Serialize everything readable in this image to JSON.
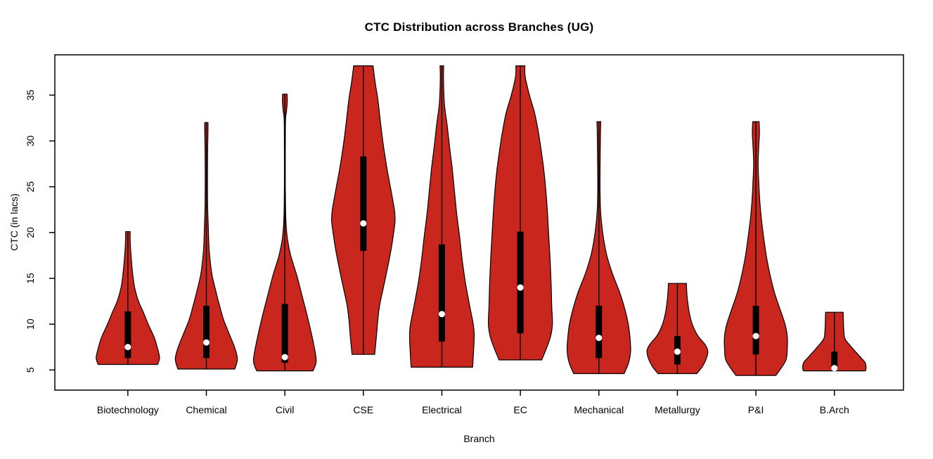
{
  "chart_data": {
    "type": "violin",
    "title": "CTC Distribution across Branches (UG)",
    "xlabel": "Branch",
    "ylabel": "CTC (in lacs)",
    "yticks": [
      5,
      10,
      15,
      20,
      25,
      30,
      35
    ],
    "ylim": [
      2.8,
      39.4
    ],
    "xlim": [
      0.07,
      10.88
    ],
    "grid": false,
    "legend": null,
    "units": "CTC in lacs",
    "colors": {
      "violin_fill": "#C9261E",
      "violin_outline": "#000000",
      "box": "#000000",
      "whisker": "#000000",
      "median_dot": "#FFFFFF",
      "axis": "#000000",
      "text": "#000000",
      "background": "#FFFFFF"
    },
    "density_note": "density = [CTC value in lacs, relative violin half-width 0..1]",
    "branches": [
      {
        "name": "Biotechnology",
        "stats": {
          "min": 5.6,
          "q1": 6.3,
          "median": 7.5,
          "q3": 11.4,
          "max": 20
        },
        "density": [
          [
            20.1,
            0.07
          ],
          [
            19.4,
            0.07
          ],
          [
            18.5,
            0.08
          ],
          [
            17,
            0.11
          ],
          [
            15.5,
            0.15
          ],
          [
            14,
            0.21
          ],
          [
            12.5,
            0.33
          ],
          [
            11.3,
            0.48
          ],
          [
            10,
            0.63
          ],
          [
            8.5,
            0.82
          ],
          [
            7.2,
            0.93
          ],
          [
            6.3,
            0.98
          ],
          [
            5.6,
            0.92
          ]
        ]
      },
      {
        "name": "Chemical",
        "stats": {
          "min": 5.1,
          "q1": 6.3,
          "median": 8,
          "q3": 12,
          "max": 32
        },
        "density": [
          [
            32,
            0.05
          ],
          [
            31,
            0.05
          ],
          [
            29,
            0.04
          ],
          [
            26,
            0.035
          ],
          [
            23,
            0.04
          ],
          [
            20.5,
            0.06
          ],
          [
            18,
            0.09
          ],
          [
            15.5,
            0.17
          ],
          [
            13.5,
            0.3
          ],
          [
            12,
            0.41
          ],
          [
            10.5,
            0.53
          ],
          [
            9,
            0.7
          ],
          [
            7.5,
            0.87
          ],
          [
            6.2,
            0.96
          ],
          [
            5.1,
            0.88
          ]
        ]
      },
      {
        "name": "Civil",
        "stats": {
          "min": 4.9,
          "q1": 5.8,
          "median": 6.4,
          "q3": 12.2,
          "max": 35
        },
        "density": [
          [
            35.1,
            0.07
          ],
          [
            34.3,
            0.075
          ],
          [
            33.2,
            0.05
          ],
          [
            32.3,
            0.02
          ],
          [
            29,
            0.015
          ],
          [
            25,
            0.015
          ],
          [
            21.5,
            0.03
          ],
          [
            19.3,
            0.08
          ],
          [
            17.5,
            0.18
          ],
          [
            15.3,
            0.37
          ],
          [
            13,
            0.54
          ],
          [
            10.5,
            0.72
          ],
          [
            8,
            0.88
          ],
          [
            6,
            0.97
          ],
          [
            4.9,
            0.87
          ]
        ]
      },
      {
        "name": "CSE",
        "stats": {
          "min": 6.7,
          "q1": 18,
          "median": 21,
          "q3": 28.3,
          "max": 38
        },
        "density": [
          [
            38.2,
            0.3
          ],
          [
            36.5,
            0.36
          ],
          [
            34.5,
            0.45
          ],
          [
            32,
            0.53
          ],
          [
            29.5,
            0.62
          ],
          [
            27,
            0.73
          ],
          [
            24.5,
            0.86
          ],
          [
            22.5,
            0.96
          ],
          [
            21.3,
            0.98
          ],
          [
            19.8,
            0.93
          ],
          [
            18,
            0.85
          ],
          [
            16,
            0.74
          ],
          [
            14,
            0.62
          ],
          [
            12,
            0.5
          ],
          [
            10.2,
            0.44
          ],
          [
            8.5,
            0.4
          ],
          [
            6.7,
            0.35
          ]
        ]
      },
      {
        "name": "Electrical",
        "stats": {
          "min": 5.3,
          "q1": 8.1,
          "median": 11.1,
          "q3": 18.7,
          "max": 38
        },
        "density": [
          [
            38.2,
            0.055
          ],
          [
            36.5,
            0.05
          ],
          [
            34,
            0.08
          ],
          [
            31.8,
            0.16
          ],
          [
            29.3,
            0.24
          ],
          [
            27,
            0.32
          ],
          [
            24.5,
            0.39
          ],
          [
            22,
            0.46
          ],
          [
            19.5,
            0.55
          ],
          [
            17,
            0.63
          ],
          [
            14.5,
            0.73
          ],
          [
            12,
            0.86
          ],
          [
            10,
            0.97
          ],
          [
            8.8,
            1.0
          ],
          [
            7,
            0.98
          ],
          [
            5.3,
            0.95
          ]
        ]
      },
      {
        "name": "EC",
        "stats": {
          "min": 6.1,
          "q1": 9,
          "median": 14,
          "q3": 20.1,
          "max": 38
        },
        "density": [
          [
            38.2,
            0.14
          ],
          [
            37,
            0.15
          ],
          [
            35,
            0.28
          ],
          [
            33.2,
            0.43
          ],
          [
            31.3,
            0.54
          ],
          [
            29.3,
            0.63
          ],
          [
            27,
            0.72
          ],
          [
            24.5,
            0.79
          ],
          [
            22,
            0.84
          ],
          [
            19.5,
            0.88
          ],
          [
            17,
            0.92
          ],
          [
            14.5,
            0.95
          ],
          [
            12,
            0.97
          ],
          [
            10,
            0.99
          ],
          [
            8.6,
            0.93
          ],
          [
            7.3,
            0.8
          ],
          [
            6.1,
            0.66
          ]
        ]
      },
      {
        "name": "Mechanical",
        "stats": {
          "min": 4.6,
          "q1": 6.3,
          "median": 8.5,
          "q3": 12,
          "max": 32
        },
        "density": [
          [
            32.1,
            0.06
          ],
          [
            31,
            0.05
          ],
          [
            28,
            0.04
          ],
          [
            25,
            0.035
          ],
          [
            22.5,
            0.05
          ],
          [
            20.5,
            0.1
          ],
          [
            18.8,
            0.17
          ],
          [
            17.3,
            0.26
          ],
          [
            15.5,
            0.42
          ],
          [
            13.5,
            0.64
          ],
          [
            11.8,
            0.79
          ],
          [
            10,
            0.91
          ],
          [
            8.2,
            0.97
          ],
          [
            7,
            0.98
          ],
          [
            5.8,
            0.92
          ],
          [
            4.6,
            0.78
          ]
        ]
      },
      {
        "name": "Metallurgy",
        "stats": {
          "min": 4.6,
          "q1": 5.6,
          "median": 7,
          "q3": 8.7,
          "max": 14.4
        },
        "density": [
          [
            14.45,
            0.28
          ],
          [
            13.5,
            0.29
          ],
          [
            12.4,
            0.32
          ],
          [
            11.2,
            0.37
          ],
          [
            10,
            0.46
          ],
          [
            8.8,
            0.62
          ],
          [
            7.8,
            0.85
          ],
          [
            7.1,
            0.94
          ],
          [
            6.3,
            0.9
          ],
          [
            5.4,
            0.78
          ],
          [
            4.6,
            0.6
          ]
        ]
      },
      {
        "name": "P&I",
        "stats": {
          "min": 4.4,
          "q1": 6.7,
          "median": 8.7,
          "q3": 12,
          "max": 32
        },
        "density": [
          [
            32.1,
            0.1
          ],
          [
            30.8,
            0.11
          ],
          [
            29.5,
            0.09
          ],
          [
            27.5,
            0.07
          ],
          [
            25.5,
            0.09
          ],
          [
            23.5,
            0.12
          ],
          [
            21.5,
            0.17
          ],
          [
            19.5,
            0.24
          ],
          [
            17.5,
            0.32
          ],
          [
            15.5,
            0.43
          ],
          [
            13.5,
            0.57
          ],
          [
            11.5,
            0.76
          ],
          [
            10,
            0.9
          ],
          [
            8.7,
            0.97
          ],
          [
            7.3,
            0.97
          ],
          [
            6,
            0.92
          ],
          [
            4.4,
            0.62
          ]
        ]
      },
      {
        "name": "B.Arch",
        "stats": {
          "min": 4.9,
          "q1": 5.1,
          "median": 5.2,
          "q3": 7,
          "max": 11.2
        },
        "density": [
          [
            11.3,
            0.27
          ],
          [
            10.4,
            0.28
          ],
          [
            9.4,
            0.29
          ],
          [
            8.4,
            0.33
          ],
          [
            7.5,
            0.53
          ],
          [
            6.5,
            0.78
          ],
          [
            5.8,
            0.95
          ],
          [
            5.2,
            0.98
          ],
          [
            4.9,
            0.96
          ]
        ]
      }
    ]
  }
}
